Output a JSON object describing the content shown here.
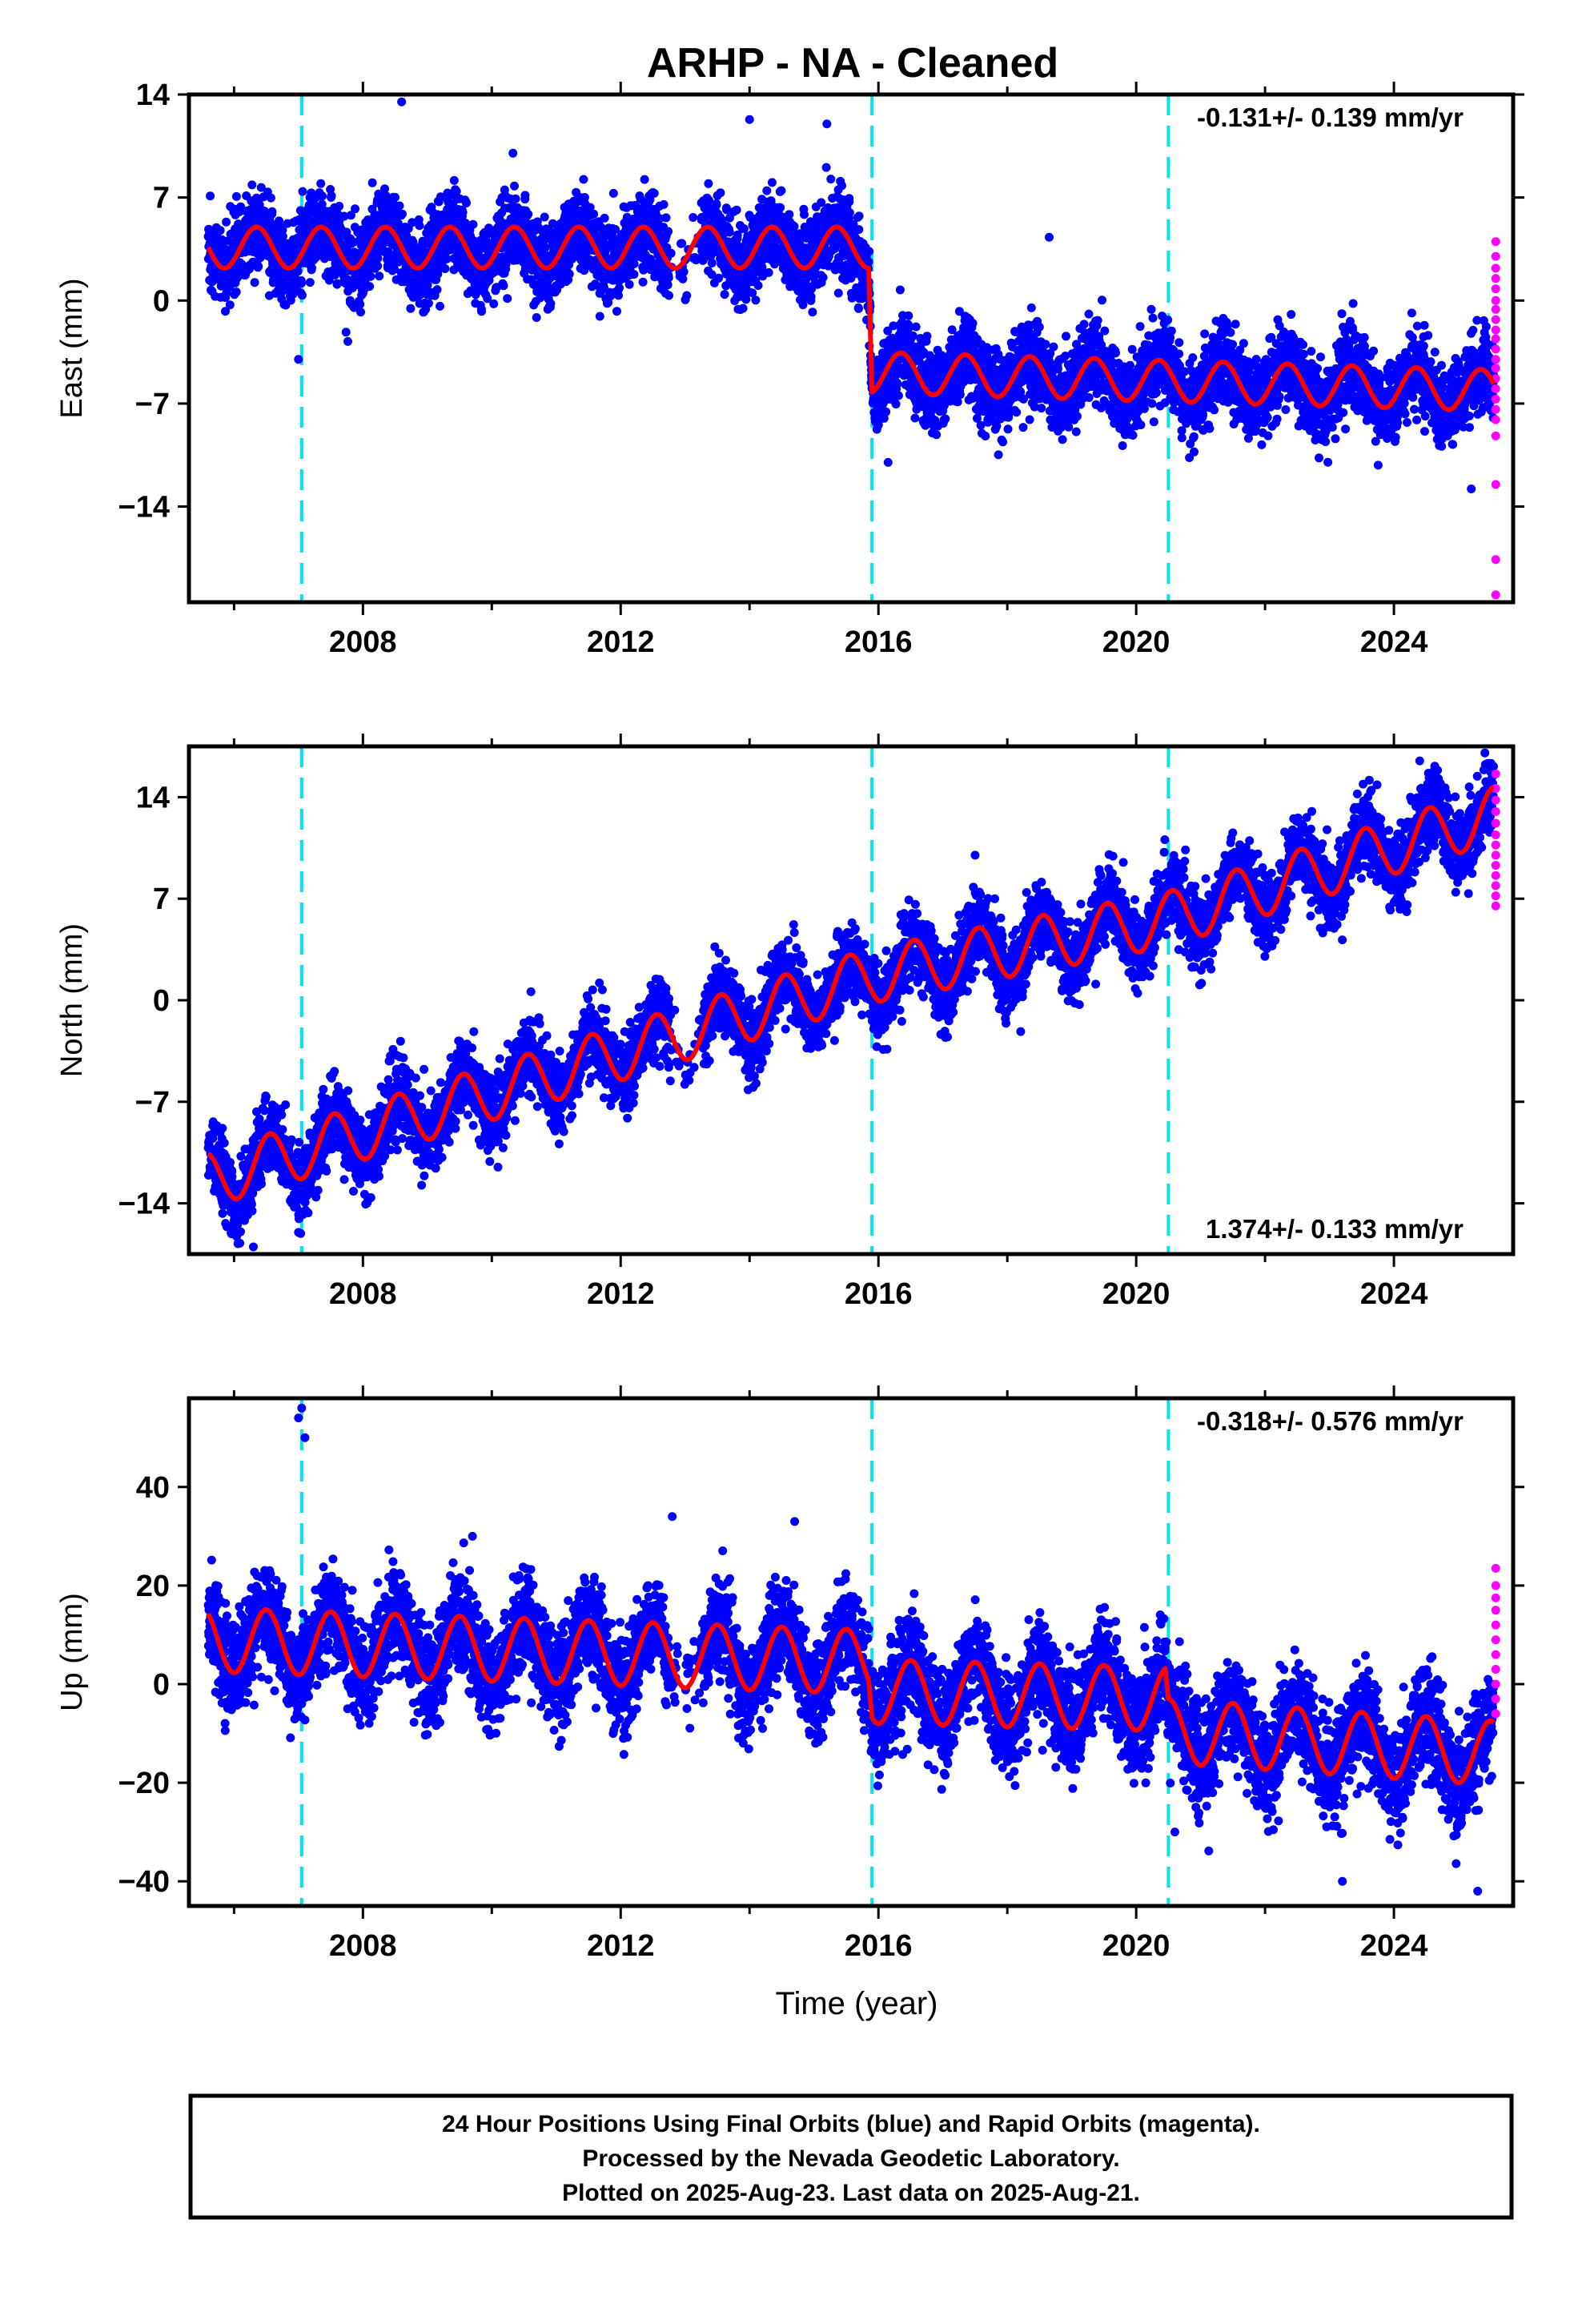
{
  "figure_title": "ARHP  - NA - Cleaned",
  "x_axis_label": "Time (year)",
  "footer": {
    "line1": "24 Hour Positions Using Final Orbits (blue) and Rapid Orbits (magenta).",
    "line2": "Processed by the Nevada Geodetic Laboratory.",
    "line3": "Plotted on 2025-Aug-23. Last data on 2025-Aug-21."
  },
  "colors": {
    "final_orbits": "#0000ff",
    "rapid_orbits": "#ff00ff",
    "model_fit": "#ff0000",
    "equipment_change": "#00e5ee"
  },
  "chart_data": [
    {
      "type": "scatter",
      "ylabel": "East (mm)",
      "rate": "-0.131+/- 0.139 mm/yr",
      "rate_position": "top-right",
      "xlim": [
        2005.3,
        2025.85
      ],
      "ylim": [
        -20.5,
        14
      ],
      "yticks": [
        14,
        7,
        0,
        -7,
        -14
      ],
      "ytick_labels": [
        "14",
        "7",
        "0",
        "−7",
        "−14"
      ],
      "xticks": [
        2008,
        2012,
        2016,
        2020,
        2024
      ],
      "xtick_labels": [
        "2008",
        "2012",
        "2016",
        "2020",
        "2024"
      ],
      "x_minor_ticks": [
        2006,
        2010,
        2014,
        2018,
        2022
      ],
      "equipment_changes": [
        2007.05,
        2015.9,
        2020.5
      ],
      "series": [
        {
          "role": "final",
          "x_range": [
            2005.6,
            2025.55
          ],
          "knots": [
            [
              2005.6,
              3.6
            ],
            [
              2015.85,
              3.6
            ],
            [
              2015.9,
              -4.9
            ],
            [
              2025.55,
              -6.1
            ]
          ],
          "annual_amplitude": 1.4,
          "annual_phase": 0.35,
          "scatter_sigma": 1.35
        },
        {
          "role": "rapid",
          "x": 2025.58,
          "y": [
            4.0,
            3.0,
            2.2,
            1.5,
            0.8,
            0.0,
            -0.6,
            -1.3,
            -2.0,
            -2.6,
            -3.3,
            -4.0,
            -4.6,
            -5.3,
            -6.0,
            -6.7,
            -7.4,
            -8.1,
            -9.2,
            -12.5,
            -17.6,
            -20.0
          ]
        },
        {
          "role": "fit",
          "x_range": [
            2005.6,
            2025.55
          ],
          "knots": [
            [
              2005.6,
              3.6
            ],
            [
              2015.85,
              3.6
            ],
            [
              2015.9,
              -4.9
            ],
            [
              2025.55,
              -6.1
            ]
          ],
          "annual_amplitude": 1.4,
          "annual_phase": 0.35
        }
      ],
      "outliers": [
        [
          2008.6,
          13.5
        ],
        [
          2014.0,
          12.3
        ],
        [
          2015.2,
          12.0
        ],
        [
          2018.65,
          4.3
        ],
        [
          2007.0,
          -4.0
        ],
        [
          2016.15,
          -11.0
        ],
        [
          2025.2,
          -12.8
        ]
      ]
    },
    {
      "type": "scatter",
      "ylabel": "North (mm)",
      "rate": "1.374+/- 0.133 mm/yr",
      "rate_position": "bottom-right",
      "xlim": [
        2005.3,
        2025.85
      ],
      "ylim": [
        -17.5,
        17.5
      ],
      "yticks": [
        14,
        7,
        0,
        -7,
        -14
      ],
      "ytick_labels": [
        "14",
        "7",
        "0",
        "−7",
        "−14"
      ],
      "xticks": [
        2008,
        2012,
        2016,
        2020,
        2024
      ],
      "xtick_labels": [
        "2008",
        "2012",
        "2016",
        "2020",
        "2024"
      ],
      "x_minor_ticks": [
        2006,
        2010,
        2014,
        2018,
        2022
      ],
      "equipment_changes": [
        2007.05,
        2015.9,
        2020.5
      ],
      "series": [
        {
          "role": "final",
          "x_range": [
            2005.6,
            2025.55
          ],
          "knots": [
            [
              2005.6,
              -12.4
            ],
            [
              2015.9,
              1.7
            ],
            [
              2020.5,
              5.6
            ],
            [
              2025.55,
              12.8
            ]
          ],
          "annual_amplitude": 1.9,
          "annual_phase": 0.55,
          "scatter_sigma": 1.25
        },
        {
          "role": "rapid",
          "x": 2025.58,
          "y": [
            15.6,
            14.6,
            13.8,
            13.0,
            12.2,
            11.4,
            10.7,
            10.0,
            9.3,
            8.6,
            7.9,
            7.2,
            6.5
          ]
        },
        {
          "role": "fit",
          "x_range": [
            2005.6,
            2025.55
          ],
          "knots": [
            [
              2005.6,
              -12.4
            ],
            [
              2015.9,
              1.7
            ],
            [
              2020.5,
              5.6
            ],
            [
              2025.55,
              12.8
            ]
          ],
          "annual_amplitude": 1.9,
          "annual_phase": 0.55
        }
      ],
      "outliers": [
        [
          2006.3,
          -17.0
        ],
        [
          2017.5,
          10.0
        ],
        [
          2019.8,
          9.5
        ],
        [
          2024.4,
          16.5
        ],
        [
          2007.0,
          -16.0
        ]
      ]
    },
    {
      "type": "scatter",
      "ylabel": "Up (mm)",
      "rate": "-0.318+/- 0.576 mm/yr",
      "rate_position": "top-right",
      "xlim": [
        2005.3,
        2025.85
      ],
      "ylim": [
        -45,
        58
      ],
      "yticks": [
        40,
        20,
        0,
        -20,
        -40
      ],
      "ytick_labels": [
        "40",
        "20",
        "0",
        "−20",
        "−40"
      ],
      "xticks": [
        2008,
        2012,
        2016,
        2020,
        2024
      ],
      "xtick_labels": [
        "2008",
        "2012",
        "2016",
        "2020",
        "2024"
      ],
      "x_minor_ticks": [
        2006,
        2010,
        2014,
        2018,
        2022
      ],
      "equipment_changes": [
        2007.05,
        2015.9,
        2020.5
      ],
      "series": [
        {
          "role": "final",
          "x_range": [
            2005.6,
            2025.55
          ],
          "knots": [
            [
              2005.6,
              9.0
            ],
            [
              2015.85,
              4.5
            ],
            [
              2015.9,
              -1.5
            ],
            [
              2020.45,
              -3.0
            ],
            [
              2020.5,
              -9.5
            ],
            [
              2025.55,
              -14.0
            ]
          ],
          "annual_amplitude": 6.5,
          "annual_phase": 0.5,
          "scatter_sigma": 5.0
        },
        {
          "role": "rapid",
          "x": 2025.58,
          "y": [
            23.5,
            20.0,
            17.5,
            15.0,
            12.0,
            9.0,
            6.0,
            3.0,
            0.0,
            -3.0,
            -6.0
          ]
        },
        {
          "role": "fit",
          "x_range": [
            2005.6,
            2025.55
          ],
          "knots": [
            [
              2005.6,
              9.0
            ],
            [
              2015.85,
              4.5
            ],
            [
              2015.9,
              -1.5
            ],
            [
              2020.45,
              -3.0
            ],
            [
              2020.5,
              -9.5
            ],
            [
              2025.55,
              -14.0
            ]
          ],
          "annual_amplitude": 6.5,
          "annual_phase": 0.5
        }
      ],
      "outliers": [
        [
          2007.05,
          56.0
        ],
        [
          2007.0,
          54.0
        ],
        [
          2007.1,
          50.0
        ],
        [
          2012.8,
          34.0
        ],
        [
          2014.7,
          33.0
        ],
        [
          2009.7,
          30.0
        ],
        [
          2023.2,
          -40.0
        ],
        [
          2025.3,
          -42.0
        ],
        [
          2020.6,
          -30.0
        ]
      ]
    }
  ]
}
